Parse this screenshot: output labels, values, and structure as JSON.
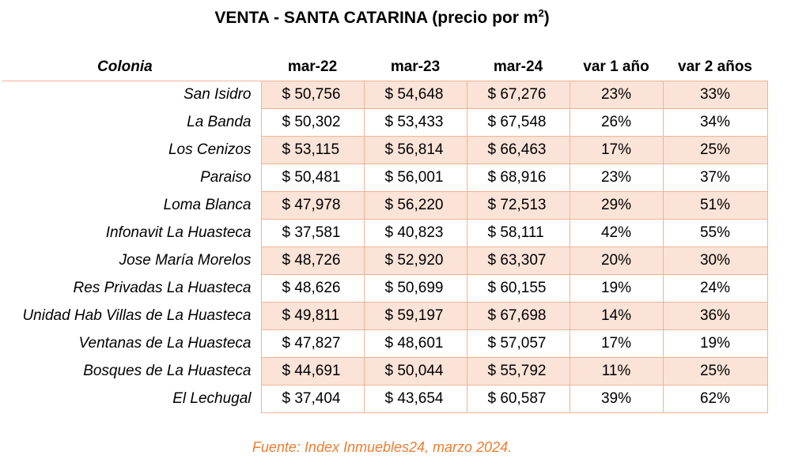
{
  "title": {
    "text": "VENTA - SANTA CATARINA (precio por m",
    "superscript": "2",
    "suffix": ")"
  },
  "table": {
    "headers": {
      "name": "Colonia",
      "m22": "mar-22",
      "m23": "mar-23",
      "m24": "mar-24",
      "v1": "var 1 año",
      "v2": "var 2 años"
    },
    "rows": [
      {
        "colonia": "San Isidro",
        "m22": "$ 50,756",
        "m23": "$ 54,648",
        "m24": "$ 67,276",
        "v1": "23%",
        "v2": "33%"
      },
      {
        "colonia": "La Banda",
        "m22": "$ 50,302",
        "m23": "$ 53,433",
        "m24": "$ 67,548",
        "v1": "26%",
        "v2": "34%"
      },
      {
        "colonia": "Los Cenizos",
        "m22": "$ 53,115",
        "m23": "$ 56,814",
        "m24": "$ 66,463",
        "v1": "17%",
        "v2": "25%"
      },
      {
        "colonia": "Paraiso",
        "m22": "$ 50,481",
        "m23": "$ 56,001",
        "m24": "$ 68,916",
        "v1": "23%",
        "v2": "37%"
      },
      {
        "colonia": "Loma Blanca",
        "m22": "$ 47,978",
        "m23": "$ 56,220",
        "m24": "$ 72,513",
        "v1": "29%",
        "v2": "51%"
      },
      {
        "colonia": "Infonavit La Huasteca",
        "m22": "$ 37,581",
        "m23": "$ 40,823",
        "m24": "$ 58,111",
        "v1": "42%",
        "v2": "55%"
      },
      {
        "colonia": "Jose María Morelos",
        "m22": "$ 48,726",
        "m23": "$ 52,920",
        "m24": "$ 63,307",
        "v1": "20%",
        "v2": "30%"
      },
      {
        "colonia": "Res Privadas La Huasteca",
        "m22": "$ 48,626",
        "m23": "$ 50,699",
        "m24": "$ 60,155",
        "v1": "19%",
        "v2": "24%"
      },
      {
        "colonia": "Unidad Hab Villas de La Huasteca",
        "m22": "$ 49,811",
        "m23": "$ 59,197",
        "m24": "$ 67,698",
        "v1": "14%",
        "v2": "36%"
      },
      {
        "colonia": "Ventanas de La Huasteca",
        "m22": "$ 47,827",
        "m23": "$ 48,601",
        "m24": "$ 57,057",
        "v1": "17%",
        "v2": "19%"
      },
      {
        "colonia": "Bosques de La Huasteca",
        "m22": "$ 44,691",
        "m23": "$ 50,044",
        "m24": "$ 55,792",
        "v1": "11%",
        "v2": "25%"
      },
      {
        "colonia": "El Lechugal",
        "m22": "$ 37,404",
        "m23": "$ 43,654",
        "m24": "$ 60,587",
        "v1": "39%",
        "v2": "62%"
      }
    ]
  },
  "source": "Fuente: Index Inmuebles24, marzo 2024.",
  "colors": {
    "border": "#f2b394",
    "shade": "#fbe3d7",
    "source_text": "#ed7d31"
  }
}
